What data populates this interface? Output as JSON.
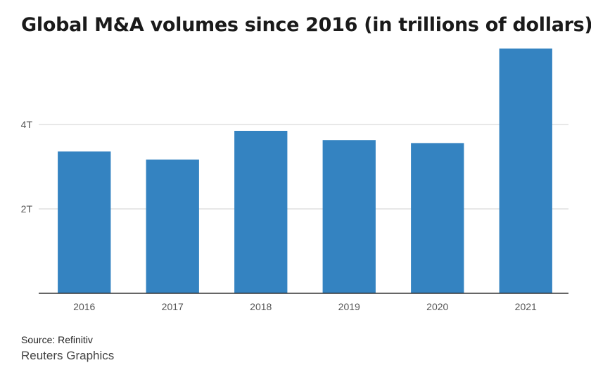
{
  "chart_data": {
    "type": "bar",
    "title": "Global M&A volumes since 2016 (in trillions of dollars)",
    "categories": [
      "2016",
      "2017",
      "2018",
      "2019",
      "2020",
      "2021"
    ],
    "values": [
      3.36,
      3.17,
      3.85,
      3.63,
      3.56,
      5.8
    ],
    "xlabel": "",
    "ylabel": "",
    "ylim": [
      0,
      5.8
    ],
    "yticks": [
      {
        "value": 2,
        "label": "2T"
      },
      {
        "value": 4,
        "label": "4T"
      }
    ],
    "grid": true,
    "bar_color": "#3483c1"
  },
  "footer": {
    "source": "Source: Refinitiv",
    "credit": "Reuters Graphics"
  }
}
